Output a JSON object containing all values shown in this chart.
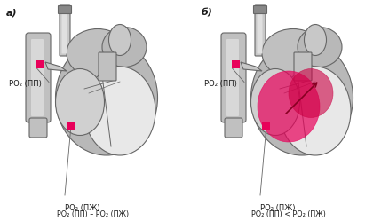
{
  "bg_color": "#ffffff",
  "fig_width": 4.39,
  "fig_height": 2.49,
  "dpi": 100,
  "label_a": "а)",
  "label_b": "б)",
  "left_labels": {
    "pp": "PO₂ (ПП)",
    "pzh": "PO₂ (ПЖ)",
    "equation": "PO₂ (ПП) – PO₂ (ПЖ)"
  },
  "right_labels": {
    "pp": "PO₂ (ПП)",
    "pzh": "PO₂ (ПЖ)",
    "equation": "PO₂ (ПП) < PO₂ (ПЖ)"
  },
  "highlight_color": "#e8005a",
  "text_color": "#1a1a1a",
  "line_color": "#666666",
  "heart_outer": "#b8b8b8",
  "heart_inner": "#d0d0d0",
  "heart_light": "#e8e8e8",
  "pipe_color": "#a0a0a0"
}
